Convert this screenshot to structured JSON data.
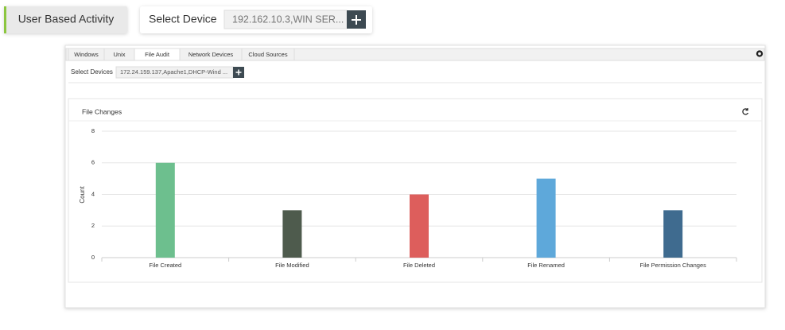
{
  "header": {
    "button": "User Based Activity",
    "device_label": "Select Device",
    "device_value": "192.162.10.3,WIN SER..."
  },
  "tabs": [
    "Windows",
    "Unix",
    "File Audit",
    "Network Devices",
    "Cloud Sources"
  ],
  "active_tab": 2,
  "filter": {
    "label": "Select Devices",
    "value": "172.24.159.137,Apache1,DHCP-Wind ..."
  },
  "chart_data": {
    "type": "bar",
    "title": "File Changes",
    "y_label": "Count",
    "categories": [
      "File Created",
      "File Modified",
      "File Deleted",
      "File Renamed",
      "File Permission Changes"
    ],
    "values": [
      6,
      3,
      4,
      5,
      3
    ],
    "colors": [
      "#6dbf8e",
      "#4e5b4d",
      "#dd5e5c",
      "#5ea8da",
      "#3f6b8f"
    ],
    "ylim": [
      0,
      8
    ],
    "yticks": [
      0,
      2,
      4,
      6,
      8
    ],
    "grid": true
  }
}
